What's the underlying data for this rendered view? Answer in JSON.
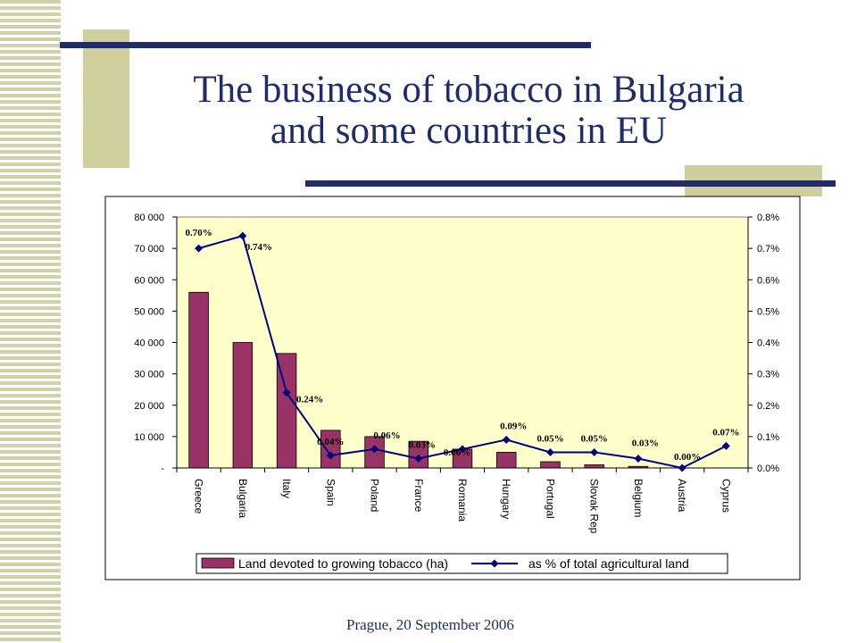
{
  "slide": {
    "title_line1": "The business of tobacco in Bulgaria",
    "title_line2": "and some countries in EU",
    "footer": "Prague, 20 September 2006",
    "colors": {
      "accent": "#cfcf9c",
      "rule": "#1f2d6b",
      "title": "#1f2d6b"
    }
  },
  "chart_data": {
    "type": "bar",
    "categories": [
      "Greece",
      "Bulgaria",
      "Italy",
      "Spain",
      "Poland",
      "France",
      "Romania",
      "Hungary",
      "Portugal",
      "Slovak Rep",
      "Belgium",
      "Austria",
      "Cyprus"
    ],
    "series": [
      {
        "name": "Land devoted to growing tobacco (ha)",
        "type": "bar",
        "axis": "left",
        "color": "#993366",
        "values": [
          56000,
          40000,
          36500,
          12000,
          10000,
          8500,
          6000,
          5000,
          2000,
          1000,
          500,
          0,
          0
        ]
      },
      {
        "name": "as % of total agricultural land",
        "type": "line",
        "axis": "right",
        "color": "#000080",
        "values": [
          0.7,
          0.74,
          0.24,
          0.04,
          0.06,
          0.03,
          0.06,
          0.09,
          0.05,
          0.05,
          0.03,
          0.0,
          0.07
        ],
        "labels": [
          "0.70%",
          "0.74%",
          "0.24%",
          "0.04%",
          "0.06%",
          "0.03%",
          "0.06%",
          "0.09%",
          "0.05%",
          "0.05%",
          "0.03%",
          "0.00%",
          "0.07%"
        ]
      }
    ],
    "y_left": {
      "range": [
        0,
        80000
      ],
      "ticks": [
        0,
        10000,
        20000,
        30000,
        40000,
        50000,
        60000,
        70000,
        80000
      ],
      "tick_labels": [
        "-",
        "10 000",
        "20 000",
        "30 000",
        "40 000",
        "50 000",
        "60 000",
        "70 000",
        "80 000"
      ]
    },
    "y_right": {
      "range": [
        0,
        0.8
      ],
      "ticks": [
        0,
        0.1,
        0.2,
        0.3,
        0.4,
        0.5,
        0.6,
        0.7,
        0.8
      ],
      "tick_labels": [
        "0.0%",
        "0.1%",
        "0.2%",
        "0.3%",
        "0.4%",
        "0.5%",
        "0.6%",
        "0.7%",
        "0.8%"
      ]
    },
    "plot_background": "#ffffcc",
    "grid": false,
    "legend_position": "bottom"
  }
}
